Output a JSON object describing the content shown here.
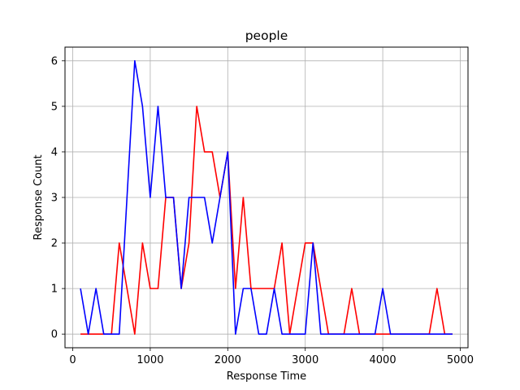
{
  "chart_data": {
    "type": "line",
    "title": "people",
    "xlabel": "Response Time",
    "ylabel": "Response Count",
    "xlim": [
      -100,
      5100
    ],
    "ylim": [
      -0.3,
      6.3
    ],
    "xticks": [
      0,
      1000,
      2000,
      3000,
      4000,
      5000
    ],
    "yticks": [
      0,
      1,
      2,
      3,
      4,
      5,
      6
    ],
    "grid": true,
    "x": [
      100,
      200,
      300,
      400,
      500,
      600,
      700,
      800,
      900,
      1000,
      1100,
      1200,
      1300,
      1400,
      1500,
      1600,
      1700,
      1800,
      1900,
      2000,
      2100,
      2200,
      2300,
      2400,
      2500,
      2600,
      2700,
      2800,
      2900,
      3000,
      3100,
      3200,
      3300,
      3400,
      3500,
      3600,
      3700,
      3800,
      3900,
      4000,
      4100,
      4200,
      4300,
      4400,
      4500,
      4600,
      4700,
      4800,
      4900
    ],
    "series": [
      {
        "color": "#ff0000",
        "values": [
          0,
          0,
          0,
          0,
          0,
          2,
          1,
          0,
          2,
          1,
          1,
          3,
          3,
          1,
          2,
          5,
          4,
          4,
          3,
          4,
          1,
          3,
          1,
          1,
          1,
          1,
          2,
          0,
          1,
          2,
          2,
          1,
          0,
          0,
          0,
          1,
          0,
          0,
          0,
          0,
          0,
          0,
          0,
          0,
          0,
          0,
          1,
          0,
          0
        ]
      },
      {
        "color": "#0000ff",
        "values": [
          1,
          0,
          1,
          0,
          0,
          0,
          3,
          6,
          5,
          3,
          5,
          3,
          3,
          1,
          3,
          3,
          3,
          2,
          3,
          4,
          0,
          1,
          1,
          0,
          0,
          1,
          0,
          0,
          0,
          0,
          2,
          0,
          0,
          0,
          0,
          0,
          0,
          0,
          0,
          1,
          0,
          0,
          0,
          0,
          0,
          0,
          0,
          0,
          0
        ]
      }
    ]
  }
}
